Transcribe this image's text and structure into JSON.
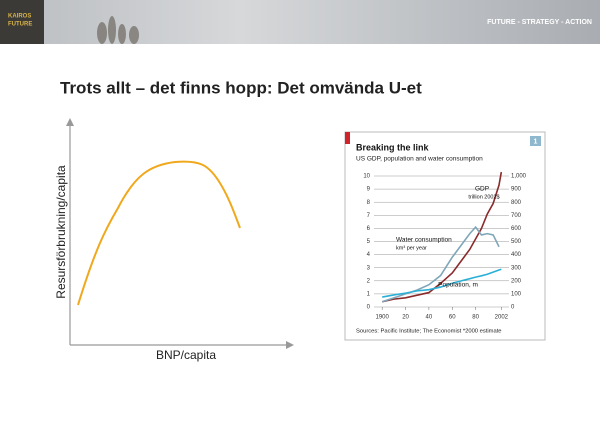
{
  "header": {
    "logo": [
      "KAIROS",
      "FUTURE"
    ],
    "tagline": "FUTURE - STRATEGY - ACTION"
  },
  "title": "Trots allt – det finns hopp: Det omvända U-et",
  "diagram": {
    "ylabel": "Resursförbrukning/capita",
    "xlabel": "BNP/capita"
  },
  "chart_data": [
    {
      "type": "line",
      "title": "Breaking the link",
      "subtitle": "US GDP, population and water consumption",
      "badge": "1",
      "x": [
        1900,
        1910,
        1920,
        1930,
        1940,
        1950,
        1960,
        1970,
        1975,
        1980,
        1985,
        1990,
        1995,
        2000,
        2002
      ],
      "xlim": [
        1893,
        2006
      ],
      "xticks": [
        1900,
        {
          "value": 1920,
          "label": "20"
        },
        {
          "value": 1940,
          "label": "40"
        },
        {
          "value": 1960,
          "label": "60"
        },
        {
          "value": 1980,
          "label": "80"
        },
        2002
      ],
      "ylim": [
        0,
        10
      ],
      "yticks": [
        0,
        1,
        2,
        3,
        4,
        5,
        6,
        7,
        8,
        9,
        10
      ],
      "y2lim": [
        0,
        1000
      ],
      "y2ticks": [
        0,
        100,
        200,
        300,
        400,
        500,
        600,
        700,
        800,
        900,
        {
          "value": 1000,
          "label": "1,000"
        }
      ],
      "grid": true,
      "series": [
        {
          "name": "GDP",
          "unit": "trillion 2002$",
          "color": "#8b2a2a",
          "values": [
            0.4,
            0.6,
            0.7,
            0.9,
            1.1,
            1.8,
            2.6,
            3.8,
            4.4,
            5.2,
            6.0,
            7.1,
            7.9,
            9.3,
            10.3
          ]
        },
        {
          "name": "Water consumption",
          "unit": "km³ per year",
          "color": "#7fa6b8",
          "axis": "y2",
          "values": [
            40,
            70,
            100,
            130,
            170,
            240,
            380,
            500,
            560,
            610,
            550,
            560,
            550,
            460,
            null
          ]
        },
        {
          "name": "Population, m",
          "color": "#2ab0d6",
          "axis": "y2",
          "values": [
            76,
            92,
            106,
            123,
            132,
            152,
            181,
            205,
            216,
            228,
            238,
            250,
            266,
            282,
            288
          ]
        }
      ],
      "source": "Sources: Pacific Institute; The Economist *2000 estimate"
    }
  ]
}
